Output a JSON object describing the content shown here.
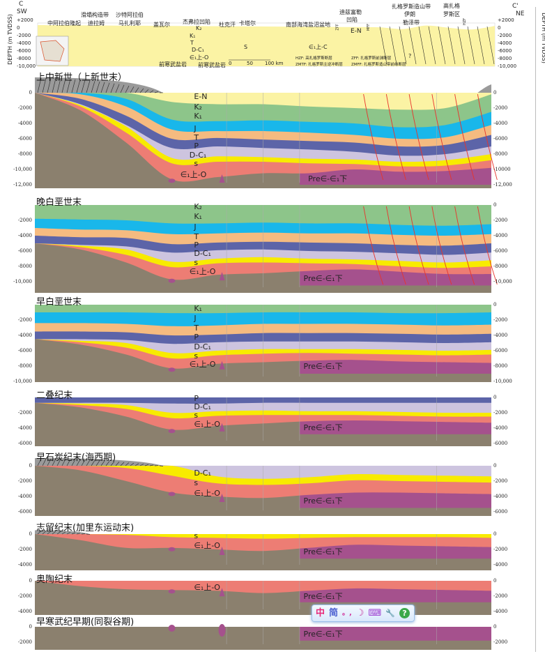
{
  "colors": {
    "E-N": "#fbf3a4",
    "K2": "#8dc58a",
    "K1": "#8dc58a",
    "J": "#19b7ea",
    "T": "#f5bb80",
    "P": "#5c64a8",
    "D-C1": "#cdc4df",
    "S": "#f8eb00",
    "CamO": "#ed7d74",
    "Pre": "#a5518d",
    "basement": "#8b806e",
    "fault": "#e8342c",
    "uplift_hatch": "#9a9a9a"
  },
  "overview": {
    "c_left": "C",
    "sw": "SW",
    "c_right": "C'",
    "ne": "NE",
    "y_axis_title": "DEPTH (m TVDSS)",
    "ticks": [
      "+2000",
      "0",
      "-2000",
      "-4000",
      "-6000",
      "-8000",
      "-10,000"
    ],
    "places": [
      "中阿拉伯隆起",
      "滑塌构造带",
      "迪拉姆",
      "沙特阿拉伯",
      "马扎利耶",
      "盖瓦尔",
      "杰弗拉凹陷",
      "杜克汗",
      "卡塔尔",
      "南部海湾盐沼盆地",
      "迪兹富勒",
      "凹陷",
      "扎格罗斯造山带",
      "伊朗",
      "勒泽带",
      "高扎格",
      "罗斯区"
    ],
    "layer_labels": [
      "K₂",
      "K₁",
      "J",
      "T",
      "P",
      "D-C₁",
      "S",
      "∈₁上-O",
      "E-N",
      "∈₁上-C"
    ],
    "salt_labels": [
      "前寒武盐岩",
      "前寒武盐岩"
    ],
    "scale": [
      "0",
      "50",
      "100 km"
    ],
    "fault_tags": [
      "ZFF",
      "MFF",
      "HZF"
    ],
    "question": "?",
    "legend": [
      "HZF: 高扎格罗斯断层",
      "ZMTF: 扎格罗斯主逆冲断层",
      "ZFF: 扎格罗斯前渊断层",
      "ZMFF: 扎格罗斯造山带前缘断层"
    ]
  },
  "panels": [
    {
      "title": "上中新世（上新世末）",
      "left_ticks": [
        "0",
        "-2000",
        "-4000",
        "-6000",
        "-8000",
        "-10,000",
        "-12,000"
      ],
      "right_ticks": [
        "0",
        "-2000",
        "-4000",
        "-6000",
        "-8000",
        "-10000",
        "-12,000"
      ],
      "labels": [
        "E-N",
        "K₂",
        "K₁",
        "J",
        "T",
        "P",
        "D-C₁",
        "s",
        "∈₁上-O",
        "Pre∈-∈₁下"
      ]
    },
    {
      "title": "晚白垩世末",
      "left_ticks": [
        "",
        "-2000",
        "-4000",
        "-6000",
        "-8000",
        "-10,000"
      ],
      "right_ticks": [
        "0",
        "-2000",
        "-4000",
        "-6000",
        "-8000",
        "-10,000"
      ],
      "labels": [
        "K₂",
        "K₁",
        "J",
        "T",
        "P",
        "D-C₁",
        "s",
        "∈₁上-O",
        "Pre∈-∈₁下"
      ]
    },
    {
      "title": "早白垩世末",
      "left_ticks": [
        "",
        "-2000",
        "-4000",
        "-6000",
        "-8000",
        "-10,000"
      ],
      "right_ticks": [
        "0",
        "-2000",
        "-4000",
        "-6000",
        "-8000",
        "-10,000"
      ],
      "labels": [
        "K₁",
        "J",
        "T",
        "P",
        "D-C₁",
        "s",
        "∈₁上-O",
        "Pre∈-∈₁下"
      ]
    },
    {
      "title": "二叠纪末",
      "left_ticks": [
        "",
        "-2000",
        "-4000",
        "-6000"
      ],
      "right_ticks": [
        "0",
        "-2000",
        "-4000",
        "-6000"
      ],
      "labels": [
        "P",
        "D-C₁",
        "s",
        "∈₁上-O",
        "Pre∈-∈₁下"
      ]
    },
    {
      "title": "早石炭纪末(海西期)",
      "left_ticks": [
        "0",
        "-2000",
        "-4000",
        "-6000"
      ],
      "right_ticks": [
        "0",
        "-2000",
        "-4000",
        "-6000"
      ],
      "labels": [
        "D-C₁",
        "s",
        "∈₁上-O",
        "Pre∈-∈₁下"
      ]
    },
    {
      "title": "志留纪末(加里东运动末)",
      "left_ticks": [
        "0",
        "-2000",
        "-4000"
      ],
      "right_ticks": [
        "0",
        "-2000",
        "-4000"
      ],
      "labels": [
        "s",
        "∈₁上-O",
        "Pre∈-∈₁下"
      ]
    },
    {
      "title": "奥陶纪末",
      "left_ticks": [
        "0",
        "-2000",
        "-4000"
      ],
      "right_ticks": [
        "0",
        "-2000",
        "-4000"
      ],
      "labels": [
        "∈₁上-O",
        "Pre∈-∈₁下"
      ]
    },
    {
      "title": "早寒武纪早期(同裂谷期)",
      "left_ticks": [
        "0",
        "-2000"
      ],
      "right_ticks": [
        "0",
        "-2000"
      ],
      "labels": [
        "Pre∈-∈₁下"
      ]
    }
  ],
  "ime_toolbar": {
    "mode": "中",
    "charset": "简",
    "punct": "。,",
    "width": "☽",
    "keyboard": "⌨",
    "settings": "🔧",
    "help": "?"
  }
}
